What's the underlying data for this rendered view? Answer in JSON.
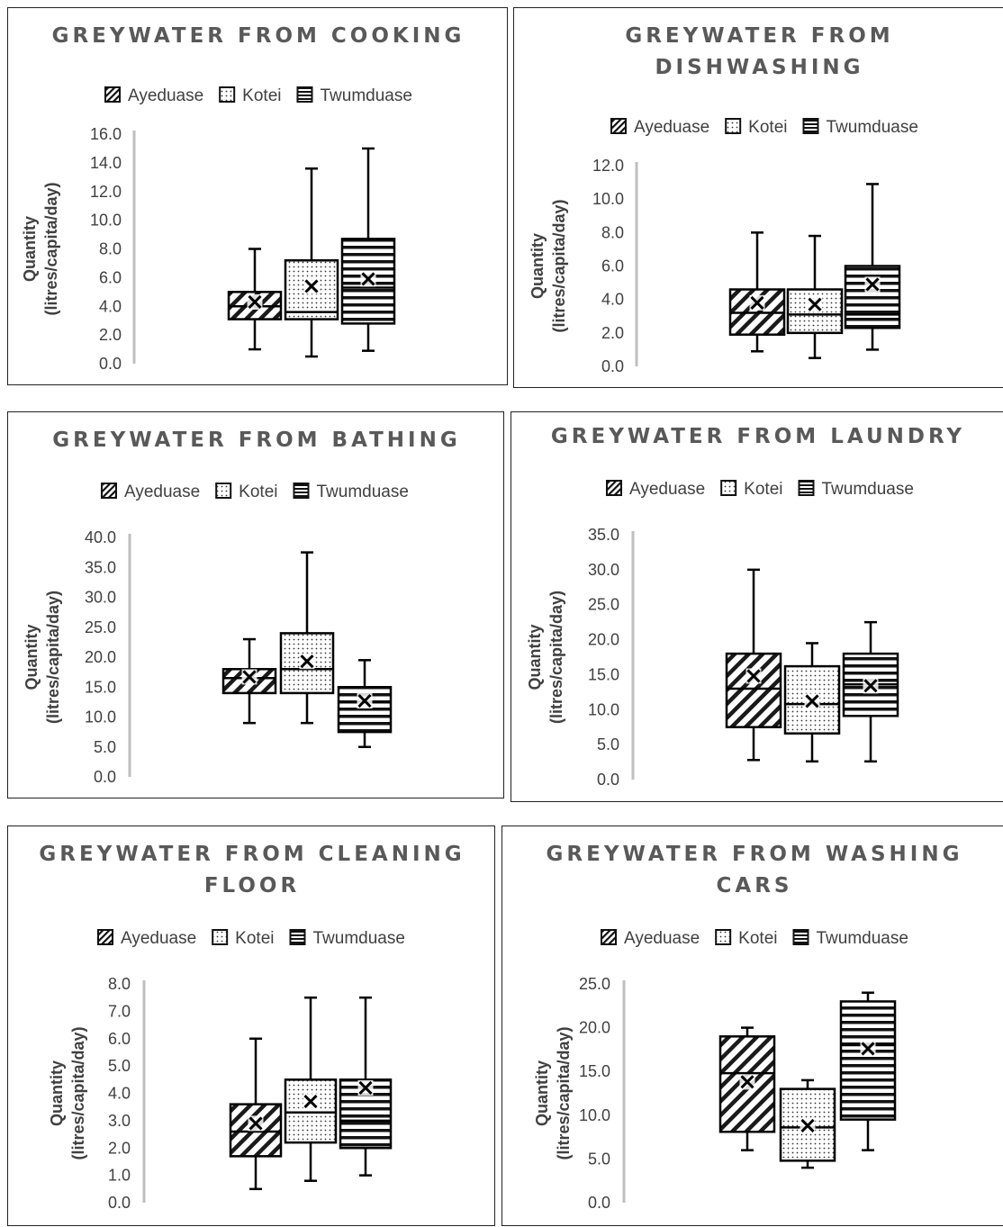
{
  "legend_labels": [
    "Ayeduase",
    "Kotei",
    "Twumduase"
  ],
  "chart_data": [
    {
      "type": "box",
      "title": [
        "GREYWATER FROM COOKING"
      ],
      "ylabel": [
        "Quantity",
        "(litres/capita/day)"
      ],
      "ylim": [
        0,
        16
      ],
      "yticks": [
        "0.0",
        "2.0",
        "4.0",
        "6.0",
        "8.0",
        "10.0",
        "12.0",
        "14.0",
        "16.0"
      ],
      "series": [
        {
          "name": "Ayeduase",
          "min": 1.0,
          "q1": 3.1,
          "median": 4.0,
          "q3": 5.0,
          "max": 8.0,
          "mean": 4.3
        },
        {
          "name": "Kotei",
          "min": 0.5,
          "q1": 3.1,
          "median": 3.6,
          "q3": 7.2,
          "max": 13.6,
          "mean": 5.4
        },
        {
          "name": "Twumduase",
          "min": 0.9,
          "q1": 2.8,
          "median": 5.3,
          "q3": 8.7,
          "max": 15.0,
          "mean": 5.9
        }
      ]
    },
    {
      "type": "box",
      "title": [
        "GREYWATER FROM",
        "DISHWASHING"
      ],
      "ylabel": [
        "Quantity",
        "(litres/capita/day)"
      ],
      "ylim": [
        0,
        12
      ],
      "yticks": [
        "0.0",
        "2.0",
        "4.0",
        "6.0",
        "8.0",
        "10.0",
        "12.0"
      ],
      "series": [
        {
          "name": "Ayeduase",
          "min": 0.9,
          "q1": 1.9,
          "median": 3.2,
          "q3": 4.6,
          "max": 8.0,
          "mean": 3.8
        },
        {
          "name": "Kotei",
          "min": 0.5,
          "q1": 2.0,
          "median": 3.1,
          "q3": 4.6,
          "max": 7.8,
          "mean": 3.7
        },
        {
          "name": "Twumduase",
          "min": 1.0,
          "q1": 2.3,
          "median": 3.1,
          "q3": 6.0,
          "max": 10.9,
          "mean": 4.9
        }
      ]
    },
    {
      "type": "box",
      "title": [
        "GREYWATER FROM BATHING"
      ],
      "ylabel": [
        "Quantity",
        "(litres/capita/day)"
      ],
      "ylim": [
        0,
        40
      ],
      "yticks": [
        "0.0",
        "5.0",
        "10.0",
        "15.0",
        "20.0",
        "25.0",
        "30.0",
        "35.0",
        "40.0"
      ],
      "series": [
        {
          "name": "Ayeduase",
          "min": 9.0,
          "q1": 14.0,
          "median": 16.5,
          "q3": 18.0,
          "max": 23.0,
          "mean": 16.7
        },
        {
          "name": "Kotei",
          "min": 9.0,
          "q1": 14.0,
          "median": 18.0,
          "q3": 24.0,
          "max": 37.5,
          "mean": 19.3
        },
        {
          "name": "Twumduase",
          "min": 5.0,
          "q1": 7.5,
          "median": 12.5,
          "q3": 15.0,
          "max": 19.5,
          "mean": 12.7
        }
      ]
    },
    {
      "type": "box",
      "title": [
        "GREYWATER FROM LAUNDRY"
      ],
      "ylabel": [
        "Quantity",
        "(litres/capita/day)"
      ],
      "ylim": [
        0,
        35
      ],
      "yticks": [
        "0.0",
        "5.0",
        "10.0",
        "15.0",
        "20.0",
        "25.0",
        "30.0",
        "35.0"
      ],
      "series": [
        {
          "name": "Ayeduase",
          "min": 2.8,
          "q1": 7.5,
          "median": 13.0,
          "q3": 18.0,
          "max": 30.0,
          "mean": 14.8
        },
        {
          "name": "Kotei",
          "min": 2.6,
          "q1": 6.6,
          "median": 10.8,
          "q3": 16.2,
          "max": 19.5,
          "mean": 11.2
        },
        {
          "name": "Twumduase",
          "min": 2.6,
          "q1": 9.1,
          "median": 13.6,
          "q3": 18.0,
          "max": 22.5,
          "mean": 13.4
        }
      ]
    },
    {
      "type": "box",
      "title": [
        "GREYWATER FROM CLEANING",
        "FLOOR"
      ],
      "ylabel": [
        "Quantity",
        "(litres/capita/day)"
      ],
      "ylim": [
        0,
        8
      ],
      "yticks": [
        "0.0",
        "1.0",
        "2.0",
        "3.0",
        "4.0",
        "5.0",
        "6.0",
        "7.0",
        "8.0"
      ],
      "series": [
        {
          "name": "Ayeduase",
          "min": 0.5,
          "q1": 1.7,
          "median": 2.6,
          "q3": 3.6,
          "max": 6.0,
          "mean": 2.9
        },
        {
          "name": "Kotei",
          "min": 0.8,
          "q1": 2.2,
          "median": 3.3,
          "q3": 4.5,
          "max": 7.5,
          "mean": 3.7
        },
        {
          "name": "Twumduase",
          "min": 1.0,
          "q1": 2.0,
          "median": 3.0,
          "q3": 4.5,
          "max": 7.5,
          "mean": 4.2
        }
      ]
    },
    {
      "type": "box",
      "title": [
        "GREYWATER FROM WASHING",
        "CARS"
      ],
      "ylabel": [
        "Quantity",
        "(litres/capita/day)"
      ],
      "ylim": [
        0,
        25
      ],
      "yticks": [
        "0.0",
        "5.0",
        "10.0",
        "15.0",
        "20.0",
        "25.0"
      ],
      "series": [
        {
          "name": "Ayeduase",
          "min": 6.0,
          "q1": 8.1,
          "median": 14.8,
          "q3": 19.0,
          "max": 20.0,
          "mean": 13.8
        },
        {
          "name": "Kotei",
          "min": 4.0,
          "q1": 4.8,
          "median": 8.6,
          "q3": 13.0,
          "max": 14.0,
          "mean": 8.8
        },
        {
          "name": "Twumduase",
          "min": 6.0,
          "q1": 9.5,
          "median": 18.0,
          "q3": 23.0,
          "max": 24.0,
          "mean": 17.6
        }
      ]
    }
  ]
}
